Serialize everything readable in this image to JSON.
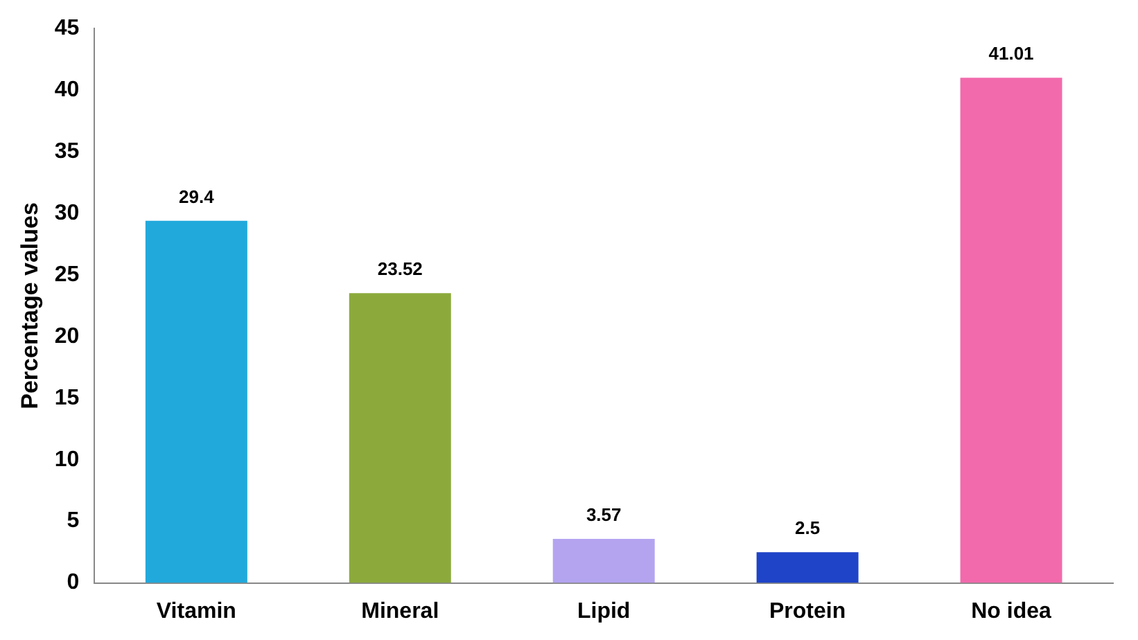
{
  "chart_data": {
    "type": "bar",
    "ylabel": "Percentage values",
    "categories": [
      "Vitamin",
      "Mineral",
      "Lipid",
      "Protein",
      "No idea"
    ],
    "values": [
      29.4,
      23.52,
      3.57,
      2.5,
      41.01
    ],
    "colors": [
      "#22a9dc",
      "#8caa3c",
      "#b4a4f0",
      "#1f44c8",
      "#f26aac"
    ],
    "ylim": [
      0,
      45
    ],
    "yticks": [
      0,
      5,
      10,
      15,
      20,
      25,
      30,
      35,
      40,
      45
    ],
    "grid": false,
    "data_labels": true
  }
}
